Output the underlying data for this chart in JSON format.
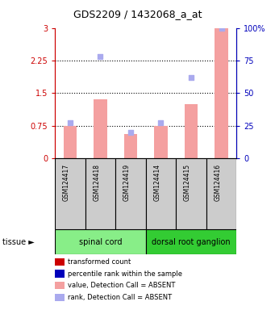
{
  "title": "GDS2209 / 1432068_a_at",
  "samples": [
    "GSM124417",
    "GSM124418",
    "GSM124419",
    "GSM124414",
    "GSM124415",
    "GSM124416"
  ],
  "tissue_groups": [
    {
      "label": "spinal cord",
      "indices": [
        0,
        1,
        2
      ],
      "color": "#88EE88"
    },
    {
      "label": "dorsal root ganglion",
      "indices": [
        3,
        4,
        5
      ],
      "color": "#33CC33"
    }
  ],
  "bar_values": [
    0.75,
    1.35,
    0.55,
    0.75,
    1.25,
    3.0
  ],
  "rank_values_pct": [
    27,
    78,
    20,
    27,
    62,
    100
  ],
  "bar_color": "#F4A0A0",
  "rank_color": "#AAAAEE",
  "ylim_left": [
    0,
    3.0
  ],
  "ylim_right": [
    0,
    100
  ],
  "yticks_left": [
    0,
    0.75,
    1.5,
    2.25,
    3.0
  ],
  "yticks_left_labels": [
    "0",
    "0.75",
    "1.5",
    "2.25",
    "3"
  ],
  "yticks_right": [
    0,
    25,
    50,
    75,
    100
  ],
  "yticks_right_labels": [
    "0",
    "25",
    "50",
    "75",
    "100%"
  ],
  "hlines": [
    0.75,
    1.5,
    2.25
  ],
  "left_axis_color": "#CC0000",
  "right_axis_color": "#0000BB",
  "bar_width": 0.45,
  "sample_box_color": "#CCCCCC",
  "legend_items": [
    {
      "color": "#CC0000",
      "label": "transformed count"
    },
    {
      "color": "#0000BB",
      "label": "percentile rank within the sample"
    },
    {
      "color": "#F4A0A0",
      "label": "value, Detection Call = ABSENT"
    },
    {
      "color": "#AAAAEE",
      "label": "rank, Detection Call = ABSENT"
    }
  ]
}
